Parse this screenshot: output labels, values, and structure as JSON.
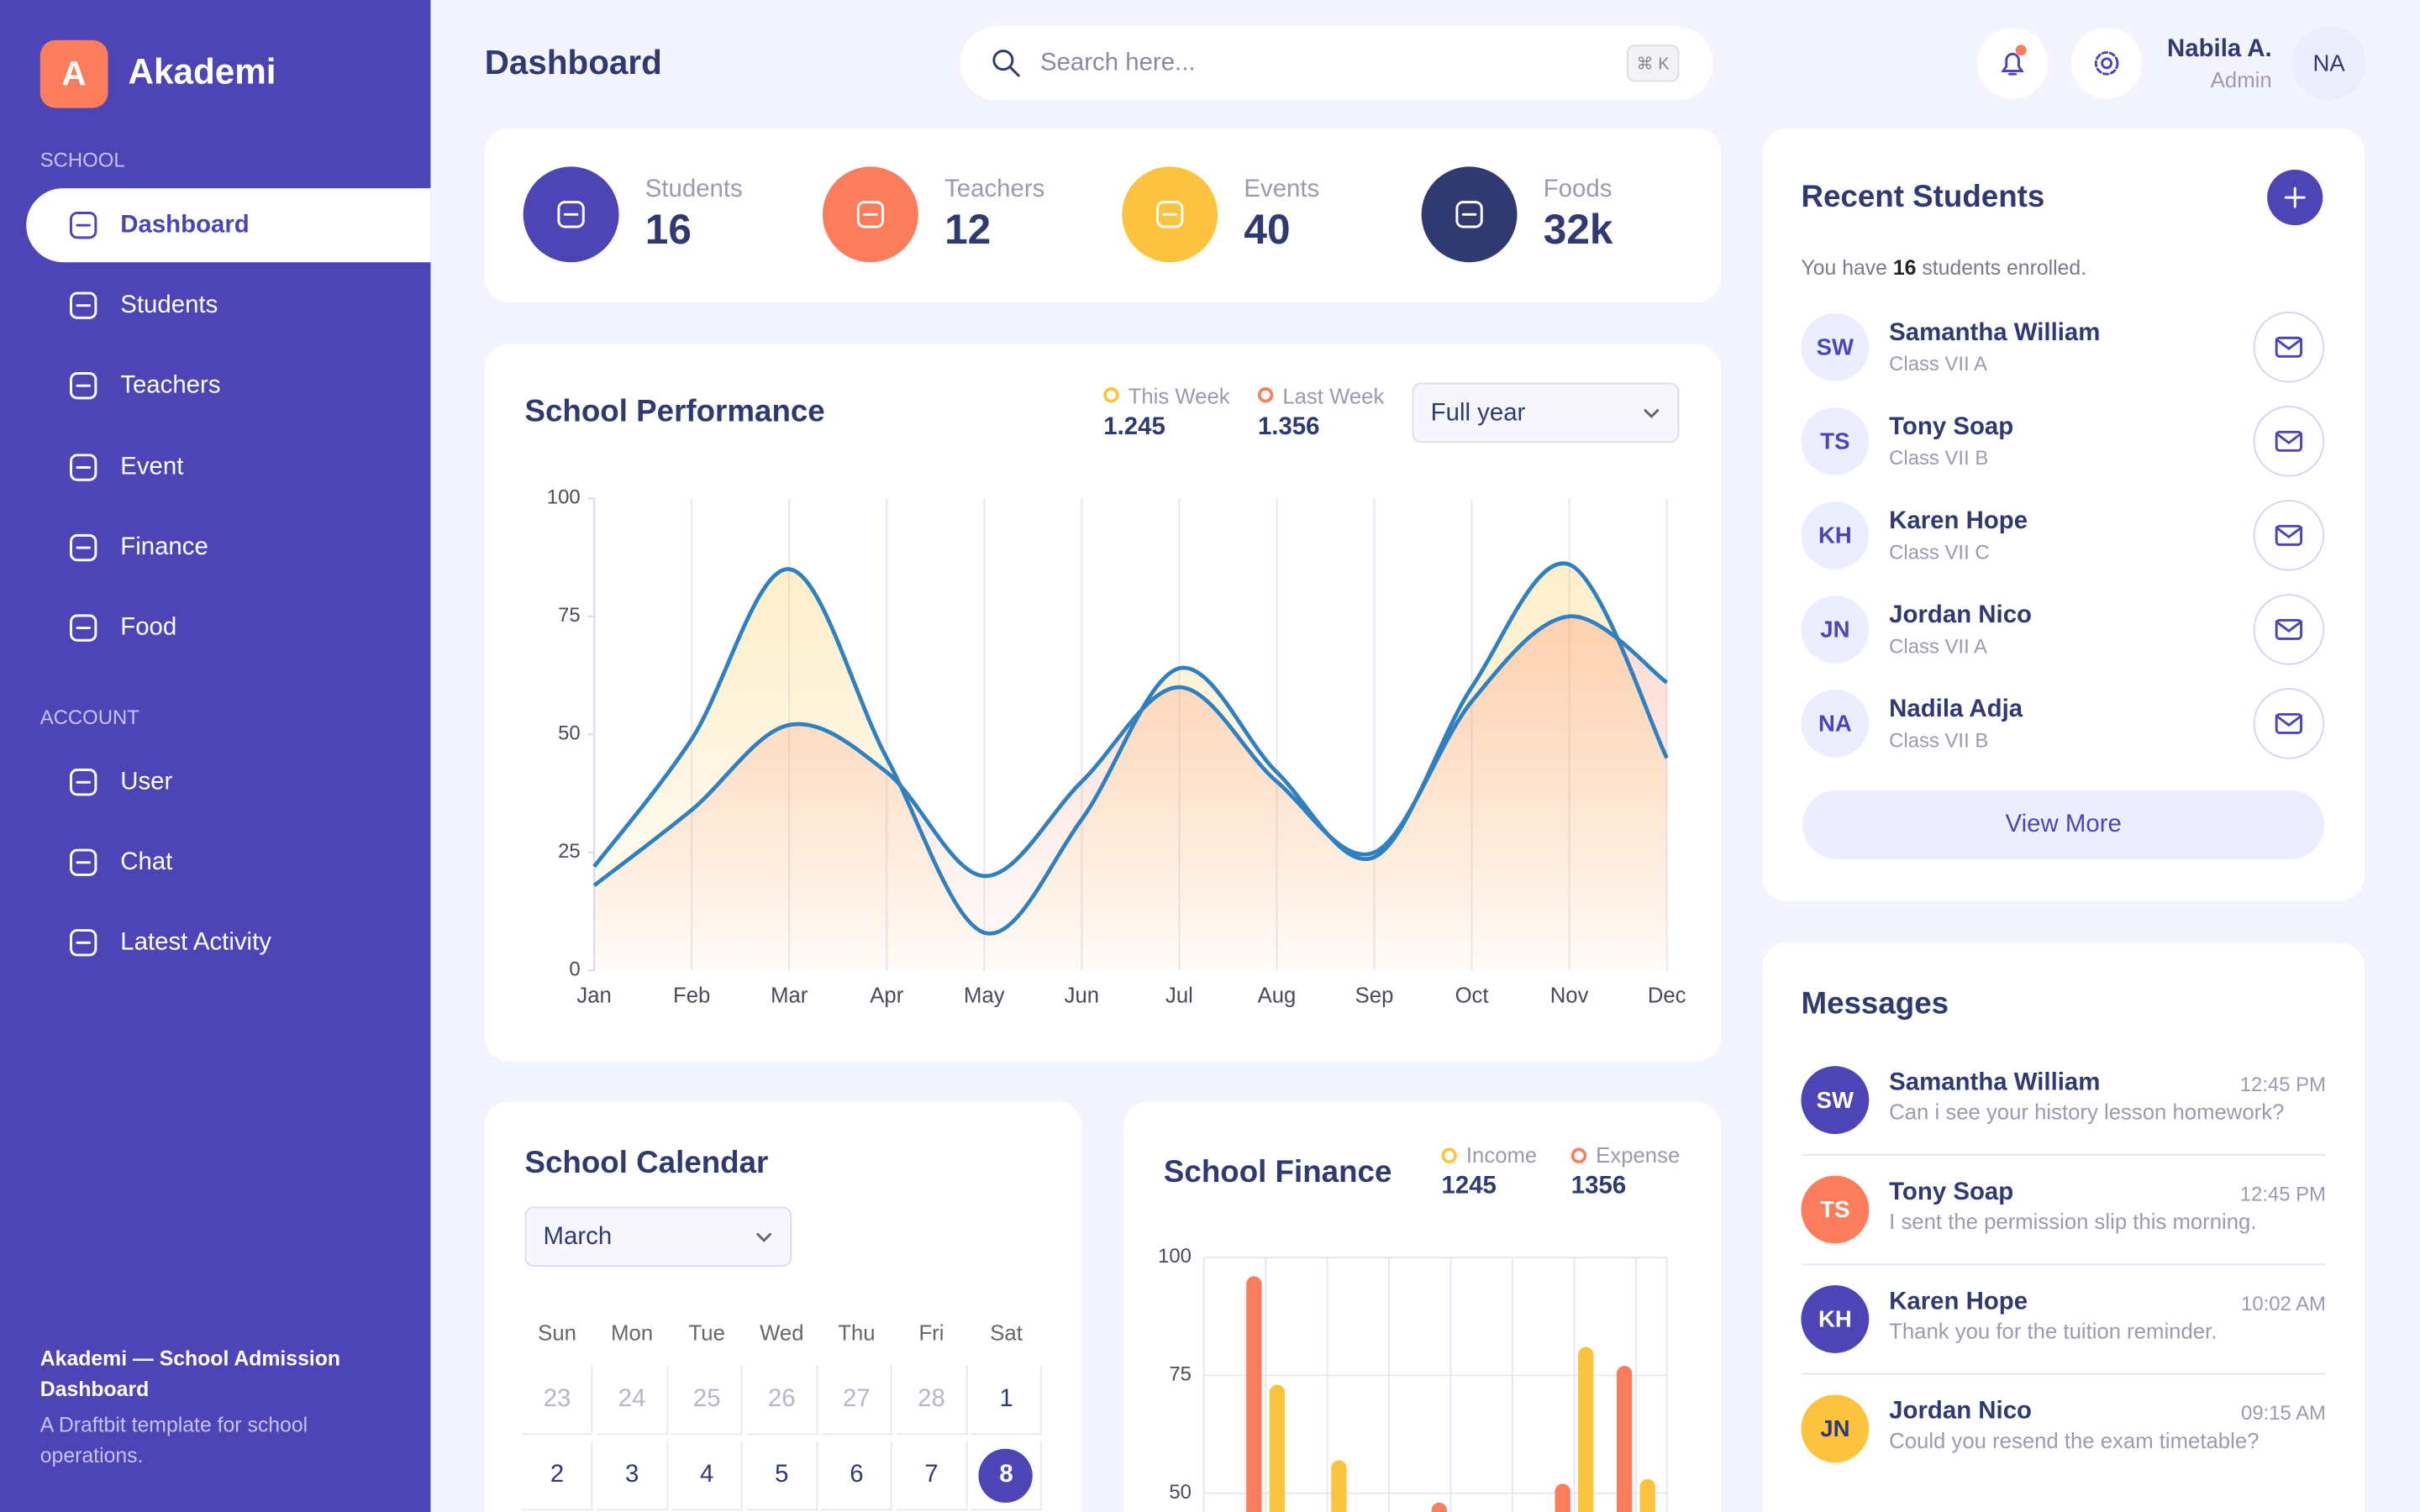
{
  "sidebar": {
    "logo": "A",
    "brand": "Akademi",
    "active": "Dashboard",
    "sections": [
      {
        "title": "SCHOOL",
        "items": [
          "Dashboard",
          "Students",
          "Teachers",
          "Event",
          "Finance",
          "Food"
        ]
      },
      {
        "title": "ACCOUNT",
        "items": [
          "User",
          "Chat",
          "Latest Activity"
        ]
      }
    ],
    "footer_title": "Akademi — School Admission Dashboard",
    "footer_text": "A Draftbit template for school operations."
  },
  "header": {
    "title": "Dashboard",
    "search_placeholder": "Search here...",
    "shortcut": "⌘ K",
    "user_name": "Nabila A.",
    "user_role": "Admin",
    "user_initials": "NA"
  },
  "stats": [
    {
      "label": "Students",
      "value": 16,
      "color": "#4d44b5"
    },
    {
      "label": "Teachers",
      "value": 12,
      "color": "#fb7d5b"
    },
    {
      "label": "Events",
      "value": 40,
      "color": "#fcc43e"
    },
    {
      "label": "Foods",
      "value": "32k",
      "color": "#303972"
    }
  ],
  "recent_students": {
    "title": "Recent Students",
    "subtitle_before": "You have ",
    "count": 16,
    "subtitle_after": " students enrolled.",
    "students": [
      {
        "initials": "SW",
        "name": "Samantha William",
        "class": "Class VII A"
      },
      {
        "initials": "TS",
        "name": "Tony Soap",
        "class": "Class VII B"
      },
      {
        "initials": "KH",
        "name": "Karen Hope",
        "class": "Class VII C"
      },
      {
        "initials": "JN",
        "name": "Jordan Nico",
        "class": "Class VII A"
      },
      {
        "initials": "NA",
        "name": "Nadila Adja",
        "class": "Class VII B"
      }
    ],
    "button": "View More"
  },
  "messages": {
    "title": "Messages",
    "items": [
      {
        "initials": "SW",
        "name": "Samantha William",
        "time": "12:45 PM",
        "text": "Can i see your history lesson homework?",
        "color": "#4d44b5"
      },
      {
        "initials": "TS",
        "name": "Tony Soap",
        "time": "12:45 PM",
        "text": "I sent the permission slip this morning.",
        "color": "#fb7d5b"
      },
      {
        "initials": "KH",
        "name": "Karen Hope",
        "time": "10:02 AM",
        "text": "Thank you for the tuition reminder.",
        "color": "#4d44b5"
      },
      {
        "initials": "JN",
        "name": "Jordan Nico",
        "time": "09:15 AM",
        "text": "Could you resend the exam timetable?",
        "color": "#fcc43e"
      }
    ]
  },
  "calendar": {
    "title": "School Calendar",
    "month": "March",
    "weekdays": [
      "Sun",
      "Mon",
      "Tue",
      "Wed",
      "Thu",
      "Fri",
      "Sat"
    ],
    "prev_month_days": [
      23,
      24,
      25,
      26,
      27,
      28
    ],
    "days": [
      1,
      2,
      3,
      4,
      5,
      6,
      7,
      8
    ],
    "selected": 8
  },
  "chart_data": [
    {
      "type": "line",
      "title": "School Performance",
      "period": "Full year",
      "categories": [
        "Jan",
        "Feb",
        "Mar",
        "Apr",
        "May",
        "Jun",
        "Jul",
        "Aug",
        "Sep",
        "Oct",
        "Nov",
        "Dec"
      ],
      "ylim": [
        0,
        100
      ],
      "yticks": [
        0,
        25,
        50,
        75,
        100
      ],
      "line_color": "#2f80c0",
      "series": [
        {
          "name": "This Week",
          "color": "#fcc43e",
          "total": 1.245,
          "values": [
            22,
            49,
            85,
            45,
            8,
            32,
            64,
            42,
            24,
            60,
            86,
            45
          ]
        },
        {
          "name": "Last Week",
          "color": "#fb7d5b",
          "total": 1.356,
          "values": [
            18,
            34,
            52,
            42,
            20,
            40,
            60,
            40,
            25,
            57,
            75,
            61
          ]
        }
      ]
    },
    {
      "type": "bar",
      "title": "School Finance",
      "categories": [
        null,
        null,
        null,
        null,
        null,
        null,
        null
      ],
      "ylim": [
        46,
        100
      ],
      "yticks": [
        50,
        75,
        100
      ],
      "grid": true,
      "series": [
        {
          "name": "Income",
          "color": "#fcc43e",
          "total": 1245,
          "values": [
            73,
            57,
            null,
            null,
            null,
            81,
            53
          ]
        },
        {
          "name": "Expense",
          "color": "#fb7d5b",
          "total": 1356,
          "values": [
            96,
            null,
            null,
            48,
            null,
            52,
            77
          ]
        }
      ]
    }
  ]
}
